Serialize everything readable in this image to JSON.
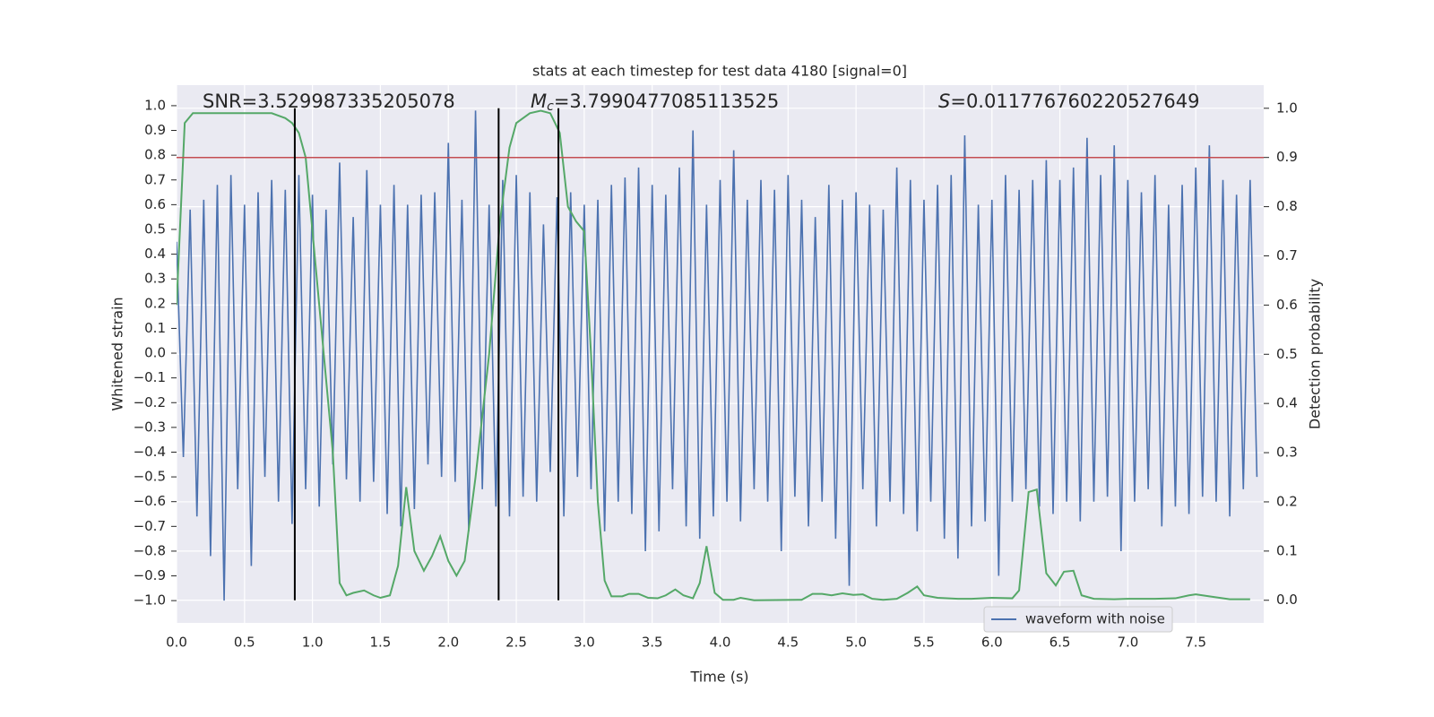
{
  "chart_data": {
    "type": "line",
    "title": "stats at each timestep for test data 4180 [signal=0]",
    "xlabel": "Time (s)",
    "ylabel": "Whitened strain",
    "y2label": "Detection probability",
    "xlim": [
      0,
      8.0
    ],
    "ylim": [
      -1.09,
      1.083
    ],
    "y2lim": [
      -0.046,
      1.047
    ],
    "xticks": [
      {
        "value": 0,
        "label": "0.0"
      },
      {
        "value": 0.5,
        "label": "0.5"
      },
      {
        "value": 1,
        "label": "1.0"
      },
      {
        "value": 1.5,
        "label": "1.5"
      },
      {
        "value": 2,
        "label": "2.0"
      },
      {
        "value": 2.5,
        "label": "2.5"
      },
      {
        "value": 3,
        "label": "3.0"
      },
      {
        "value": 3.5,
        "label": "3.5"
      },
      {
        "value": 4,
        "label": "4.0"
      },
      {
        "value": 4.5,
        "label": "4.5"
      },
      {
        "value": 5,
        "label": "5.0"
      },
      {
        "value": 5.5,
        "label": "5.5"
      },
      {
        "value": 6,
        "label": "6.0"
      },
      {
        "value": 6.5,
        "label": "6.5"
      },
      {
        "value": 7,
        "label": "7.0"
      },
      {
        "value": 7.5,
        "label": "7.5"
      }
    ],
    "yticks": [
      {
        "value": -1,
        "label": "−1.0"
      },
      {
        "value": -0.9,
        "label": "−0.9"
      },
      {
        "value": -0.8,
        "label": "−0.8"
      },
      {
        "value": -0.7,
        "label": "−0.7"
      },
      {
        "value": -0.6,
        "label": "−0.6"
      },
      {
        "value": -0.5,
        "label": "−0.5"
      },
      {
        "value": -0.4,
        "label": "−0.4"
      },
      {
        "value": -0.3,
        "label": "−0.3"
      },
      {
        "value": -0.2,
        "label": "−0.2"
      },
      {
        "value": -0.1,
        "label": "−0.1"
      },
      {
        "value": 0,
        "label": "0.0"
      },
      {
        "value": 0.1,
        "label": "0.1"
      },
      {
        "value": 0.2,
        "label": "0.2"
      },
      {
        "value": 0.3,
        "label": "0.3"
      },
      {
        "value": 0.4,
        "label": "0.4"
      },
      {
        "value": 0.5,
        "label": "0.5"
      },
      {
        "value": 0.6,
        "label": "0.6"
      },
      {
        "value": 0.7,
        "label": "0.7"
      },
      {
        "value": 0.8,
        "label": "0.8"
      },
      {
        "value": 0.9,
        "label": "0.9"
      },
      {
        "value": 1,
        "label": "1.0"
      }
    ],
    "y2ticks": [
      {
        "value": 0,
        "label": "0.0"
      },
      {
        "value": 0.1,
        "label": "0.1"
      },
      {
        "value": 0.2,
        "label": "0.2"
      },
      {
        "value": 0.3,
        "label": "0.3"
      },
      {
        "value": 0.4,
        "label": "0.4"
      },
      {
        "value": 0.5,
        "label": "0.5"
      },
      {
        "value": 0.6,
        "label": "0.6"
      },
      {
        "value": 0.7,
        "label": "0.7"
      },
      {
        "value": 0.8,
        "label": "0.8"
      },
      {
        "value": 0.9,
        "label": "0.9"
      },
      {
        "value": 1,
        "label": "1.0"
      }
    ],
    "grid": true,
    "legend": "lower right",
    "series": [
      {
        "name": "waveform with noise",
        "color": "#4c72b0",
        "x": [
          0,
          0.05,
          0.1,
          0.15,
          0.2,
          0.25,
          0.3,
          0.35,
          0.4,
          0.45,
          0.5,
          0.55,
          0.6,
          0.65,
          0.7,
          0.75,
          0.8,
          0.85,
          0.9,
          0.95,
          1,
          1.05,
          1.1,
          1.15,
          1.2,
          1.25,
          1.3,
          1.35,
          1.4,
          1.45,
          1.5,
          1.55,
          1.6,
          1.65,
          1.7,
          1.75,
          1.8,
          1.85,
          1.9,
          1.95,
          2,
          2.05,
          2.1,
          2.15,
          2.2,
          2.25,
          2.3,
          2.35,
          2.4,
          2.45,
          2.5,
          2.55,
          2.6,
          2.65,
          2.7,
          2.75,
          2.8,
          2.85,
          2.9,
          2.95,
          3,
          3.05,
          3.1,
          3.15,
          3.2,
          3.25,
          3.3,
          3.35,
          3.4,
          3.45,
          3.5,
          3.55,
          3.6,
          3.65,
          3.7,
          3.75,
          3.8,
          3.85,
          3.9,
          3.95,
          4,
          4.05,
          4.1,
          4.15,
          4.2,
          4.25,
          4.3,
          4.35,
          4.4,
          4.45,
          4.5,
          4.55,
          4.6,
          4.65,
          4.7,
          4.75,
          4.8,
          4.85,
          4.9,
          4.95,
          5,
          5.05,
          5.1,
          5.15,
          5.2,
          5.25,
          5.3,
          5.35,
          5.4,
          5.45,
          5.5,
          5.55,
          5.6,
          5.65,
          5.7,
          5.75,
          5.8,
          5.85,
          5.9,
          5.95,
          6,
          6.05,
          6.1,
          6.15,
          6.2,
          6.25,
          6.3,
          6.35,
          6.4,
          6.45,
          6.5,
          6.55,
          6.6,
          6.65,
          6.7,
          6.75,
          6.8,
          6.85,
          6.9,
          6.95,
          7,
          7.05,
          7.1,
          7.15,
          7.2,
          7.25,
          7.3,
          7.35,
          7.4,
          7.45,
          7.5,
          7.55,
          7.6,
          7.65,
          7.7,
          7.75,
          7.8,
          7.85,
          7.9,
          7.95
        ],
        "values": [
          0.45,
          -0.42,
          0.58,
          -0.66,
          0.62,
          -0.82,
          0.68,
          -1.0,
          0.72,
          -0.55,
          0.6,
          -0.86,
          0.65,
          -0.5,
          0.7,
          -0.6,
          0.66,
          -0.69,
          0.72,
          -0.55,
          0.64,
          -0.62,
          0.58,
          -0.45,
          0.77,
          -0.51,
          0.55,
          -0.6,
          0.74,
          -0.52,
          0.6,
          -0.65,
          0.68,
          -0.7,
          0.6,
          -0.63,
          0.64,
          -0.45,
          0.65,
          -0.5,
          0.85,
          -0.52,
          0.62,
          -0.72,
          0.98,
          -0.55,
          0.6,
          -0.62,
          0.7,
          -0.66,
          0.72,
          -0.58,
          0.65,
          -0.6,
          0.52,
          -0.48,
          0.63,
          -0.66,
          0.65,
          -0.5,
          0.6,
          -0.55,
          0.62,
          -0.72,
          0.68,
          -0.6,
          0.71,
          -0.65,
          0.75,
          -0.8,
          0.68,
          -0.72,
          0.64,
          -0.55,
          0.75,
          -0.7,
          0.9,
          -0.75,
          0.6,
          -0.66,
          0.7,
          -0.6,
          0.82,
          -0.68,
          0.62,
          -0.55,
          0.7,
          -0.6,
          0.66,
          -0.8,
          0.72,
          -0.58,
          0.62,
          -0.7,
          0.55,
          -0.6,
          0.68,
          -0.75,
          0.62,
          -0.94,
          0.65,
          -0.55,
          0.6,
          -0.7,
          0.58,
          -0.6,
          0.75,
          -0.65,
          0.7,
          -0.72,
          0.62,
          -0.6,
          0.68,
          -0.75,
          0.72,
          -0.83,
          0.88,
          -0.7,
          0.6,
          -0.68,
          0.62,
          -0.9,
          0.72,
          -0.6,
          0.66,
          -0.55,
          0.7,
          -0.62,
          0.78,
          -0.65,
          0.7,
          -0.6,
          0.75,
          -0.68,
          0.87,
          -0.6,
          0.72,
          -0.58,
          0.84,
          -0.8,
          0.7,
          -0.6,
          0.65,
          -0.55,
          0.72,
          -0.7,
          0.6,
          -0.62,
          0.68,
          -0.65,
          0.75,
          -0.58,
          0.84,
          -0.6,
          0.7,
          -0.66,
          0.64,
          -0.55,
          0.7,
          -0.5
        ]
      },
      {
        "color": "#55a868",
        "axis": "y2",
        "x": [
          0,
          0.06,
          0.12,
          0.2,
          0.7,
          0.8,
          0.85,
          0.9,
          0.95,
          1,
          1.05,
          1.1,
          1.15,
          1.2,
          1.25,
          1.3,
          1.38,
          1.45,
          1.5,
          1.57,
          1.63,
          1.69,
          1.75,
          1.82,
          1.88,
          1.94,
          2,
          2.06,
          2.12,
          2.2,
          2.3,
          2.38,
          2.45,
          2.5,
          2.6,
          2.68,
          2.75,
          2.82,
          2.88,
          2.94,
          3,
          3.05,
          3.1,
          3.15,
          3.2,
          3.28,
          3.33,
          3.4,
          3.47,
          3.54,
          3.6,
          3.67,
          3.73,
          3.8,
          3.85,
          3.9,
          3.96,
          4.02,
          4.1,
          4.15,
          4.25,
          4.6,
          4.68,
          4.75,
          4.82,
          4.9,
          4.98,
          5.05,
          5.12,
          5.2,
          5.3,
          5.38,
          5.45,
          5.5,
          5.6,
          5.75,
          5.85,
          6,
          6.15,
          6.2,
          6.27,
          6.33,
          6.4,
          6.47,
          6.53,
          6.6,
          6.66,
          6.75,
          6.9,
          7,
          7.2,
          7.35,
          7.45,
          7.5,
          7.6,
          7.75,
          7.9
        ],
        "values": [
          0.6,
          0.97,
          0.99,
          0.99,
          0.99,
          0.98,
          0.97,
          0.95,
          0.9,
          0.75,
          0.6,
          0.45,
          0.3,
          0.035,
          0.01,
          0.015,
          0.02,
          0.01,
          0.005,
          0.01,
          0.07,
          0.23,
          0.1,
          0.06,
          0.09,
          0.13,
          0.08,
          0.05,
          0.08,
          0.25,
          0.5,
          0.77,
          0.92,
          0.97,
          0.99,
          0.995,
          0.99,
          0.95,
          0.8,
          0.77,
          0.75,
          0.5,
          0.2,
          0.04,
          0.008,
          0.008,
          0.013,
          0.013,
          0.005,
          0.004,
          0.01,
          0.022,
          0.01,
          0.004,
          0.035,
          0.11,
          0.015,
          0.001,
          0.001,
          0.005,
          0,
          0.001,
          0.013,
          0.013,
          0.01,
          0.014,
          0.011,
          0.012,
          0.003,
          0.001,
          0.003,
          0.015,
          0.028,
          0.01,
          0.005,
          0.003,
          0.003,
          0.005,
          0.004,
          0.02,
          0.22,
          0.225,
          0.055,
          0.03,
          0.058,
          0.06,
          0.01,
          0.003,
          0.002,
          0.003,
          0.003,
          0.004,
          0.01,
          0.012,
          0.008,
          0.002,
          0.002
        ]
      }
    ],
    "threshold_line": {
      "axis": "y2",
      "value": 0.9,
      "color": "#c44e52"
    },
    "vlines": {
      "color": "#000000",
      "x": [
        0.87,
        2.37,
        2.81
      ]
    },
    "annotations": [
      {
        "text": "SNR=3.529987335205078"
      },
      {
        "symbol": "M",
        "sub": "c",
        "text": "=3.7990477085113525"
      },
      {
        "symbol": "S",
        "text": "=0.011776760220527649"
      }
    ]
  }
}
